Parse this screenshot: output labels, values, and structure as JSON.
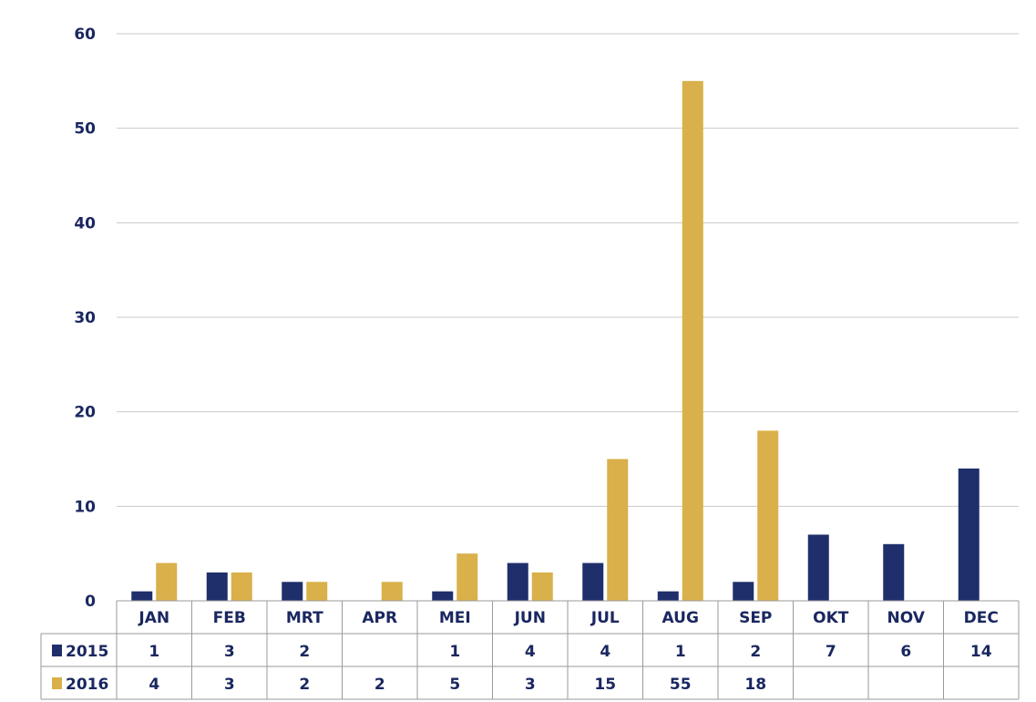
{
  "chart_data": {
    "type": "bar",
    "title": "",
    "xlabel": "",
    "ylabel": "",
    "ylim": [
      0,
      60
    ],
    "yticks": [
      0,
      10,
      20,
      30,
      40,
      50,
      60
    ],
    "grid": true,
    "legend": "data-table",
    "categories": [
      "JAN",
      "FEB",
      "MRT",
      "APR",
      "MEI",
      "JUN",
      "JUL",
      "AUG",
      "SEP",
      "OKT",
      "NOV",
      "DEC"
    ],
    "series": [
      {
        "name": "2015",
        "color": "#1f2f6b",
        "values": [
          1,
          3,
          2,
          null,
          1,
          4,
          4,
          1,
          2,
          7,
          6,
          14
        ]
      },
      {
        "name": "2016",
        "color": "#d9b04a",
        "values": [
          4,
          3,
          2,
          2,
          5,
          3,
          15,
          55,
          18,
          null,
          null,
          null
        ]
      }
    ]
  }
}
